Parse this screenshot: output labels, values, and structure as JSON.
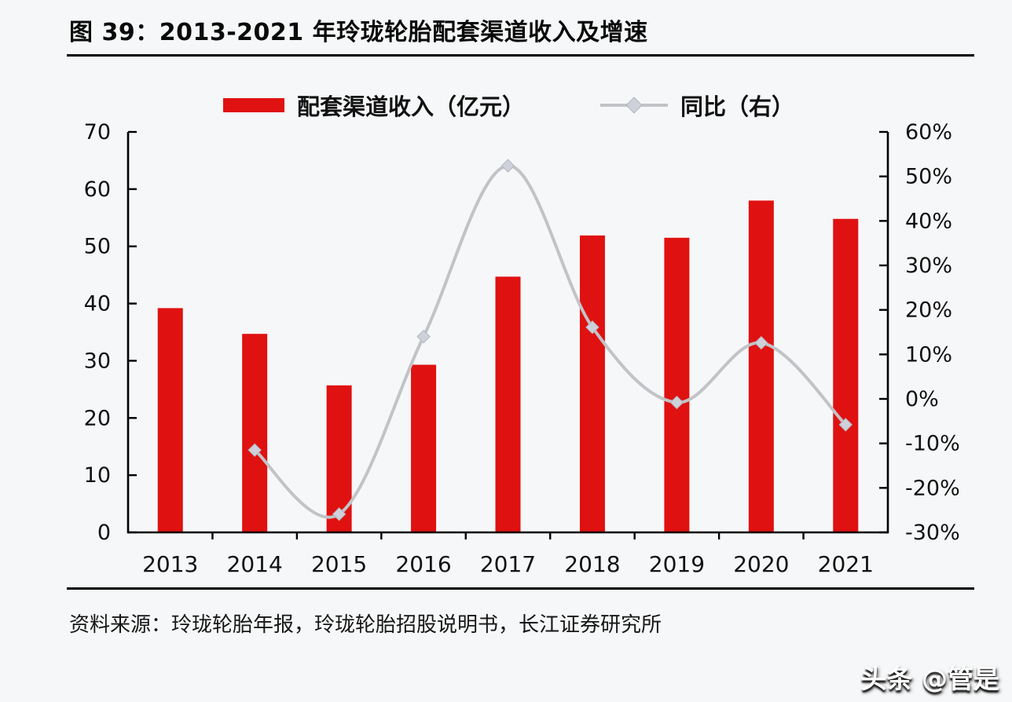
{
  "figure": {
    "title": "图 39：2013-2021 年玲珑轮胎配套渠道收入及增速",
    "source_note": "资料来源：玲珑轮胎年报，玲珑轮胎招股说明书，长江证券研究所",
    "watermark": "头条 @管是"
  },
  "colors": {
    "bar": "#e01111",
    "line": "#c2c3c7",
    "marker_fill": "#ced1da",
    "marker_stroke": "#b2b6c0",
    "axis": "#000000",
    "tick_text": "#111111",
    "background": "#f6f7f8"
  },
  "chart_data": {
    "type": "bar+line combo",
    "title": "2013-2021 年玲珑轮胎配套渠道收入及增速",
    "categories": [
      "2013",
      "2014",
      "2015",
      "2016",
      "2017",
      "2018",
      "2019",
      "2020",
      "2021"
    ],
    "series": [
      {
        "name": "配套渠道收入（亿元）",
        "type": "bar",
        "axis": "left",
        "values": [
          39.2,
          34.7,
          25.7,
          29.3,
          44.7,
          51.9,
          51.5,
          58.0,
          54.8
        ]
      },
      {
        "name": "同比（右）",
        "type": "line",
        "axis": "right",
        "values": [
          null,
          -11.5,
          -25.9,
          14.0,
          52.4,
          16.1,
          -0.8,
          12.6,
          -5.8
        ]
      }
    ],
    "left_axis": {
      "min": 0,
      "max": 70,
      "ticks": [
        "70",
        "60",
        "50",
        "40",
        "30",
        "20",
        "10",
        "0"
      ]
    },
    "right_axis": {
      "min": -30,
      "max": 60,
      "ticks": [
        "60%",
        "50%",
        "40%",
        "30%",
        "20%",
        "10%",
        "0%",
        "-10%",
        "-20%",
        "-30%"
      ]
    },
    "grid": false,
    "legend_position": "top-center",
    "line_style": "smoothed with diamond markers"
  }
}
